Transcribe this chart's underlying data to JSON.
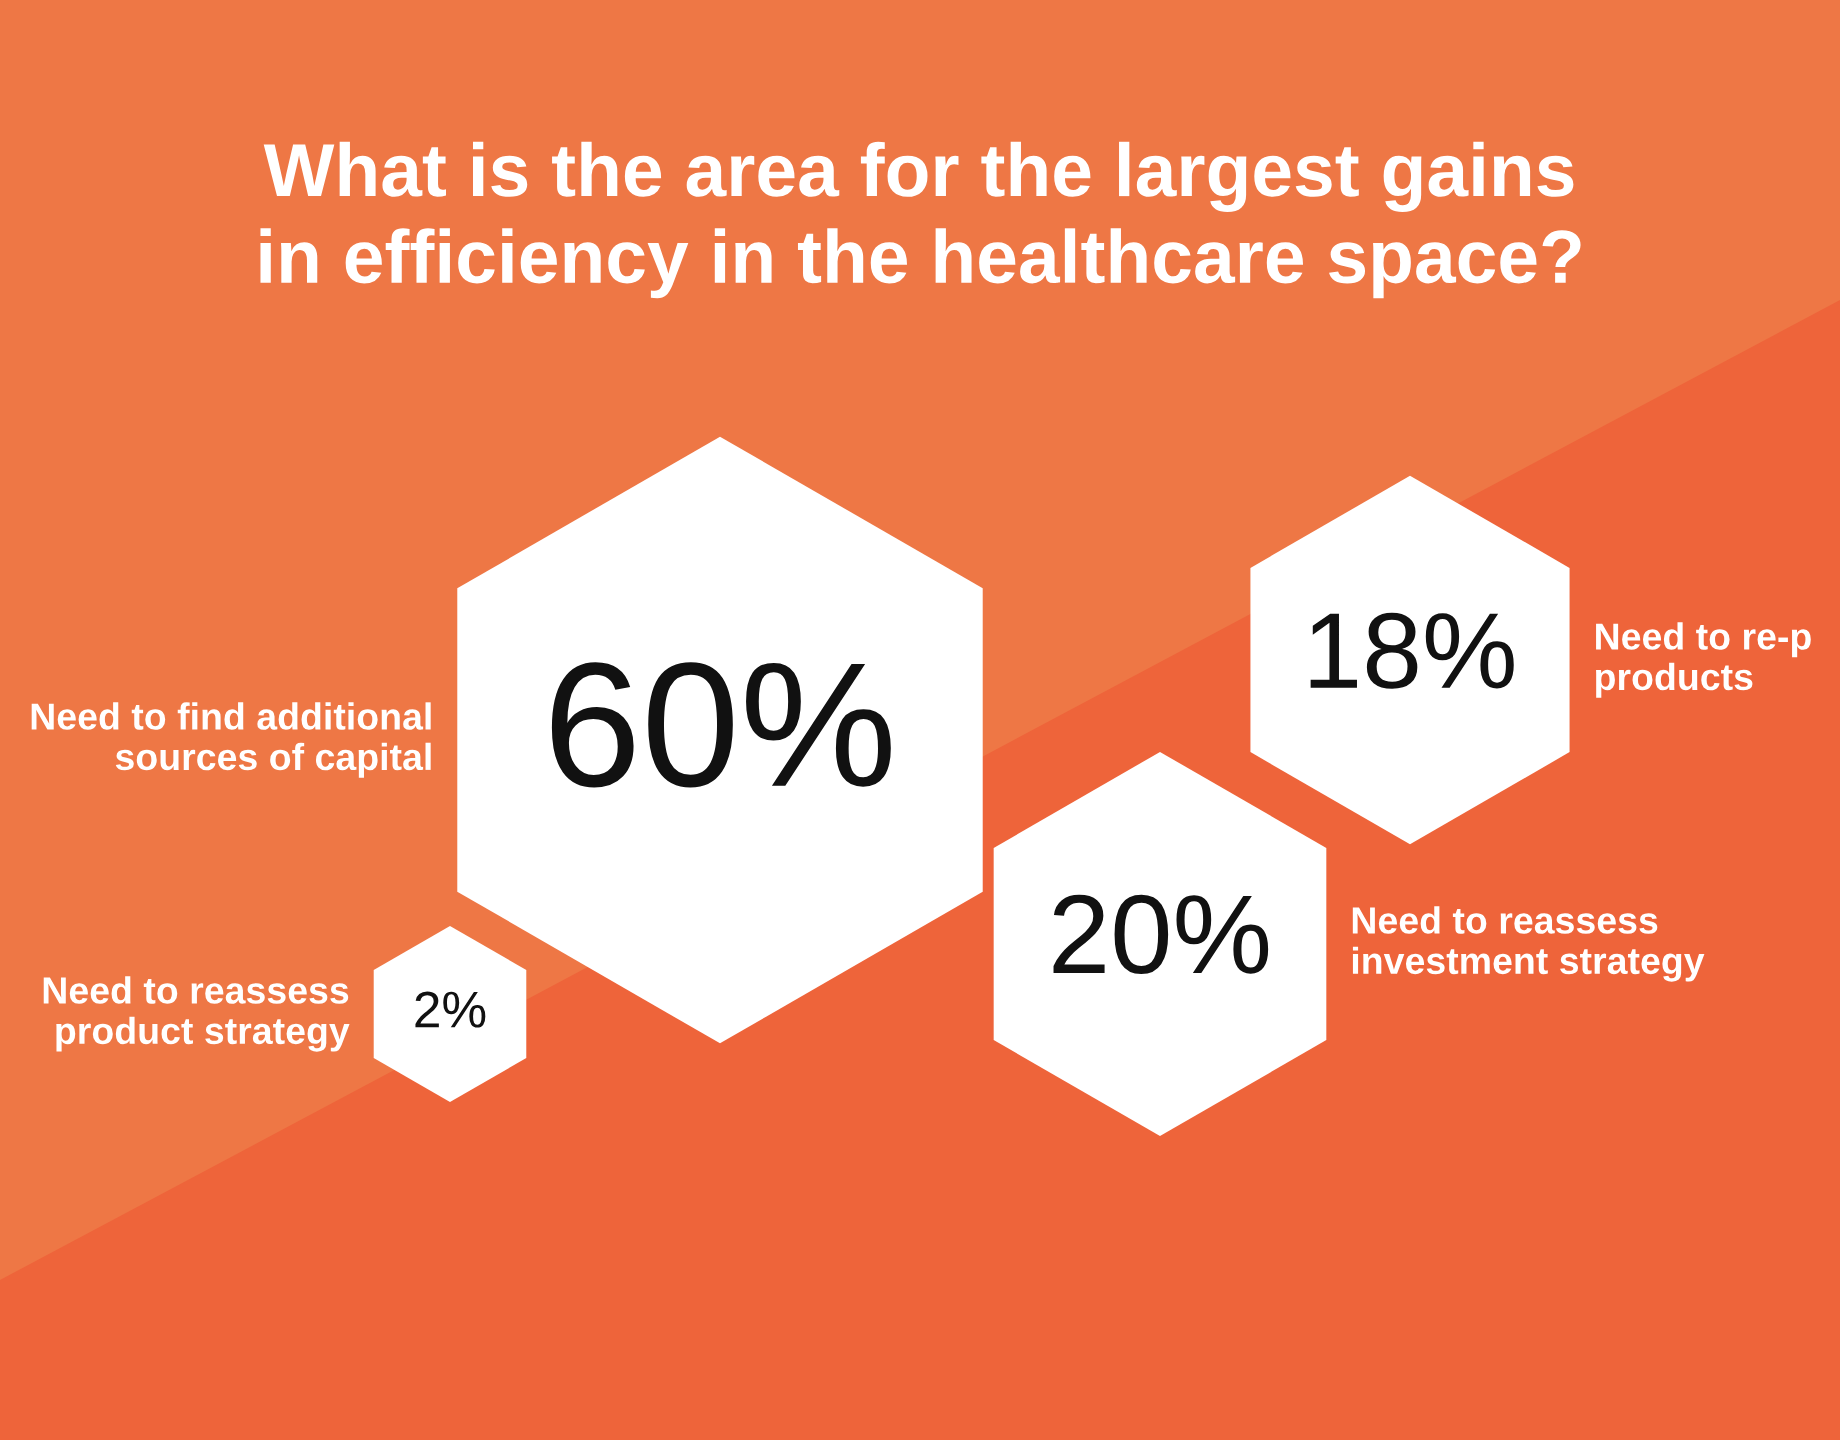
{
  "chart_data": {
    "type": "other",
    "title": "What is the area for the largest gains\nin efficiency in the healthcare space?",
    "categories": [
      "Need to find additional\nsources of capital",
      "Need to reassess\nproduct strategy",
      "Need to reassess\ninvestment strategy",
      "Need to re-p\nproducts"
    ],
    "values": [
      60,
      2,
      20,
      18
    ],
    "value_labels": [
      "60%",
      "2%",
      "20%",
      "18%"
    ],
    "colors": [
      "#ffffff",
      "#ffffff",
      "#ffffff",
      "#ffffff"
    ]
  }
}
